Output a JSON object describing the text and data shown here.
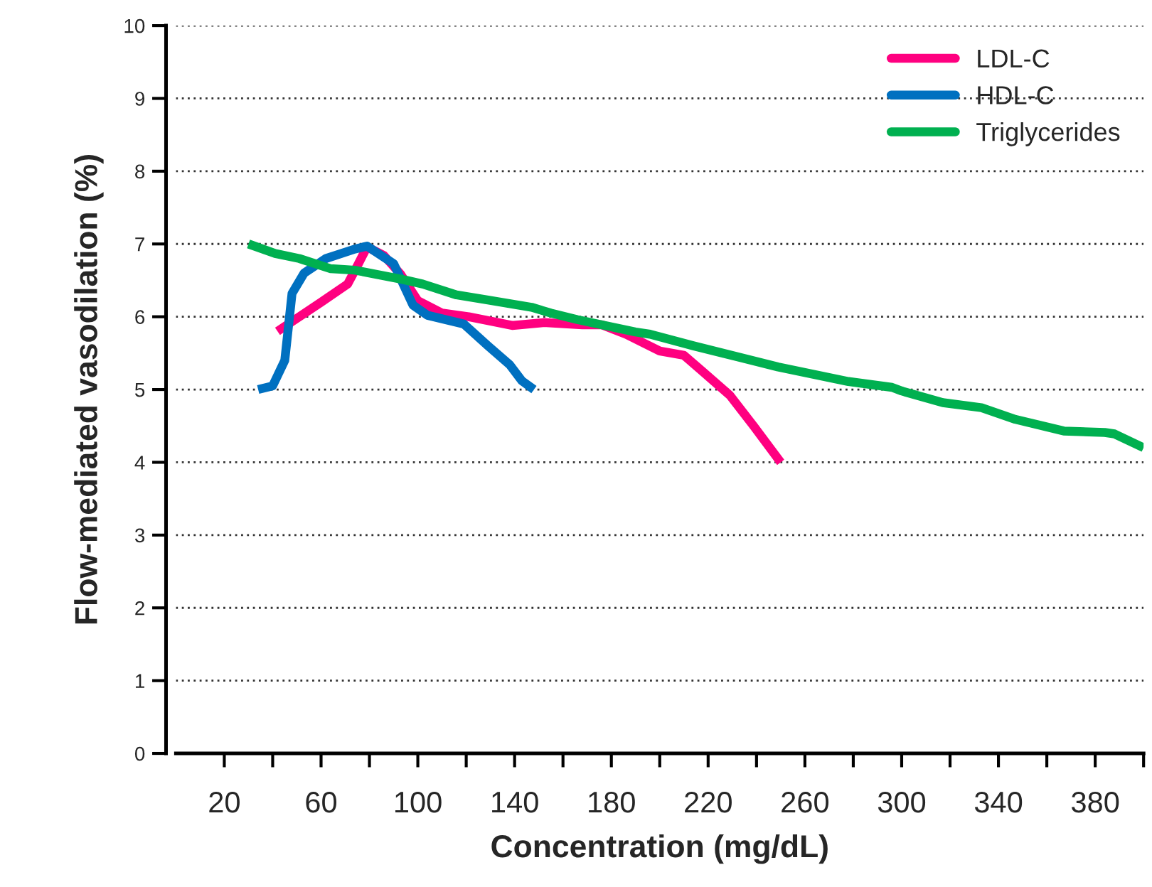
{
  "chart_data": {
    "type": "line",
    "xlabel": "Concentration (mg/dL)",
    "ylabel": "Flow-mediated vasodilation (%)",
    "xlim": [
      0,
      400
    ],
    "xticks": [
      20,
      {
        "value": 40,
        "label": null
      },
      60,
      {
        "value": 80,
        "label": null
      },
      100,
      {
        "value": 120,
        "label": null
      },
      140,
      {
        "value": 160,
        "label": null
      },
      180,
      {
        "value": 200,
        "label": null
      },
      220,
      {
        "value": 240,
        "label": null
      },
      260,
      {
        "value": 280,
        "label": null
      },
      300,
      {
        "value": 320,
        "label": null
      },
      340,
      {
        "value": 360,
        "label": null
      },
      380,
      {
        "value": 400,
        "label": null
      }
    ],
    "ylim": [
      0,
      10
    ],
    "yticks": [
      0,
      1,
      2,
      3,
      4,
      5,
      6,
      7,
      8,
      9,
      10
    ],
    "grid": "y",
    "legend": "top right",
    "line_style": "solid",
    "marker": "none",
    "series": [
      {
        "name": "LDL-C",
        "color": "#ff0080",
        "x": [
          42,
          60,
          71,
          75,
          79,
          86,
          93,
          100,
          110,
          121,
          139,
          152,
          168,
          176,
          186,
          200,
          210,
          218,
          229,
          239,
          250
        ],
        "values": [
          5.8,
          6.2,
          6.45,
          6.7,
          6.96,
          6.84,
          6.58,
          6.22,
          6.05,
          6.0,
          5.88,
          5.92,
          5.89,
          5.89,
          5.76,
          5.53,
          5.47,
          5.24,
          4.92,
          4.49,
          4.0
        ]
      },
      {
        "name": "HDL-C",
        "color": "#0070c0",
        "x": [
          34,
          40,
          45,
          48,
          53,
          62,
          74,
          79,
          90,
          98,
          104,
          119,
          129,
          138,
          143,
          148
        ],
        "values": [
          5.0,
          5.05,
          5.4,
          6.32,
          6.6,
          6.8,
          6.93,
          6.97,
          6.73,
          6.16,
          6.02,
          5.9,
          5.6,
          5.34,
          5.12,
          5.0
        ]
      },
      {
        "name": "Triglycerides",
        "color": "#00b050",
        "x": [
          30,
          41,
          51,
          64,
          74,
          94,
          102,
          116,
          129,
          147,
          155,
          166,
          190,
          196,
          214,
          249,
          278,
          296,
          300,
          317,
          333,
          347,
          367,
          384,
          388,
          400
        ],
        "values": [
          7.0,
          6.87,
          6.8,
          6.66,
          6.64,
          6.51,
          6.45,
          6.3,
          6.23,
          6.13,
          6.05,
          5.96,
          5.79,
          5.76,
          5.6,
          5.31,
          5.11,
          5.03,
          4.98,
          4.82,
          4.75,
          4.59,
          4.43,
          4.41,
          4.39,
          4.2
        ]
      }
    ]
  }
}
